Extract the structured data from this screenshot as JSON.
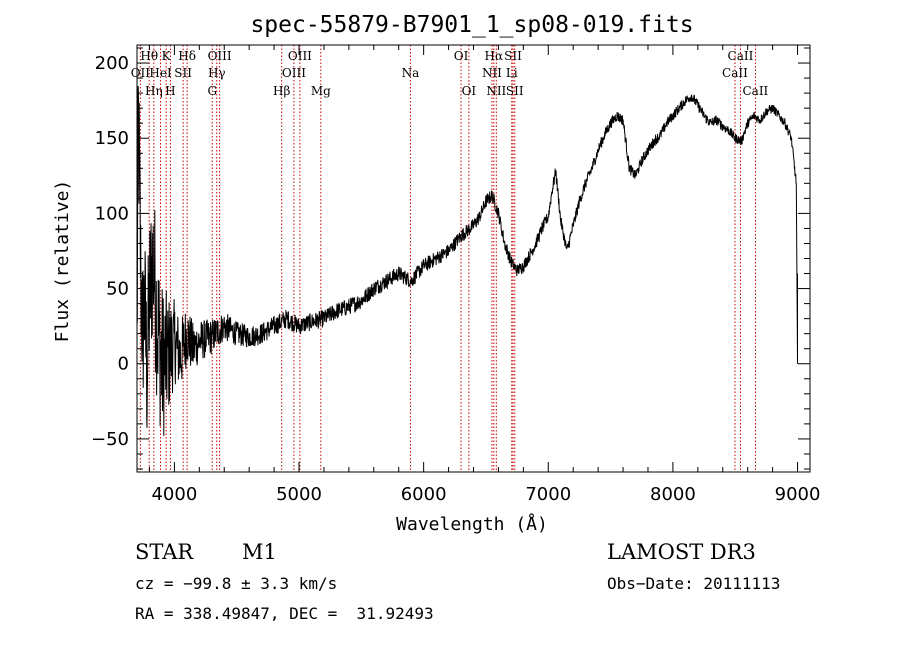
{
  "chart_data": {
    "type": "line",
    "title": "spec-55879-B7901_1_sp08-019.fits",
    "xlabel": "Wavelength (Å)",
    "ylabel": "Flux (relative)",
    "xlim": [
      3700,
      9100
    ],
    "ylim": [
      -72,
      212
    ],
    "xticks": [
      4000,
      5000,
      6000,
      7000,
      8000,
      9000
    ],
    "yticks": [
      -50,
      0,
      50,
      100,
      150,
      200
    ],
    "series": [
      {
        "name": "flux",
        "anchors": [
          [
            3700,
            10
          ],
          [
            3710,
            165
          ],
          [
            3720,
            120
          ],
          [
            3730,
            60
          ],
          [
            3745,
            20
          ],
          [
            3760,
            40
          ],
          [
            3780,
            -5
          ],
          [
            3800,
            45
          ],
          [
            3830,
            70
          ],
          [
            3860,
            30
          ],
          [
            3900,
            0
          ],
          [
            3950,
            5
          ],
          [
            4000,
            15
          ],
          [
            4050,
            5
          ],
          [
            4100,
            20
          ],
          [
            4150,
            10
          ],
          [
            4200,
            15
          ],
          [
            4300,
            18
          ],
          [
            4400,
            25
          ],
          [
            4500,
            20
          ],
          [
            4600,
            18
          ],
          [
            4700,
            20
          ],
          [
            4800,
            25
          ],
          [
            4900,
            30
          ],
          [
            5000,
            25
          ],
          [
            5100,
            28
          ],
          [
            5200,
            30
          ],
          [
            5300,
            35
          ],
          [
            5400,
            38
          ],
          [
            5500,
            42
          ],
          [
            5600,
            50
          ],
          [
            5700,
            55
          ],
          [
            5800,
            60
          ],
          [
            5900,
            55
          ],
          [
            6000,
            65
          ],
          [
            6100,
            70
          ],
          [
            6200,
            75
          ],
          [
            6300,
            85
          ],
          [
            6400,
            92
          ],
          [
            6450,
            98
          ],
          [
            6500,
            108
          ],
          [
            6550,
            112
          ],
          [
            6600,
            100
          ],
          [
            6650,
            80
          ],
          [
            6700,
            68
          ],
          [
            6750,
            62
          ],
          [
            6800,
            65
          ],
          [
            6850,
            72
          ],
          [
            6900,
            80
          ],
          [
            6950,
            90
          ],
          [
            7000,
            98
          ],
          [
            7030,
            115
          ],
          [
            7060,
            128
          ],
          [
            7100,
            95
          ],
          [
            7150,
            75
          ],
          [
            7200,
            92
          ],
          [
            7250,
            108
          ],
          [
            7300,
            120
          ],
          [
            7350,
            130
          ],
          [
            7400,
            142
          ],
          [
            7450,
            152
          ],
          [
            7500,
            160
          ],
          [
            7550,
            165
          ],
          [
            7600,
            162
          ],
          [
            7650,
            130
          ],
          [
            7700,
            125
          ],
          [
            7750,
            135
          ],
          [
            7800,
            142
          ],
          [
            7850,
            148
          ],
          [
            7900,
            152
          ],
          [
            7950,
            160
          ],
          [
            8000,
            165
          ],
          [
            8050,
            170
          ],
          [
            8100,
            175
          ],
          [
            8150,
            178
          ],
          [
            8200,
            172
          ],
          [
            8250,
            165
          ],
          [
            8300,
            160
          ],
          [
            8350,
            162
          ],
          [
            8400,
            158
          ],
          [
            8450,
            155
          ],
          [
            8500,
            150
          ],
          [
            8550,
            148
          ],
          [
            8600,
            160
          ],
          [
            8650,
            165
          ],
          [
            8700,
            162
          ],
          [
            8750,
            168
          ],
          [
            8800,
            170
          ],
          [
            8850,
            165
          ],
          [
            8900,
            160
          ],
          [
            8950,
            150
          ],
          [
            8990,
            120
          ],
          [
            9000,
            0
          ]
        ],
        "noise_profile": [
          [
            3700,
            55
          ],
          [
            3900,
            55
          ],
          [
            4000,
            28
          ],
          [
            4200,
            14
          ],
          [
            4500,
            8
          ],
          [
            5000,
            6
          ],
          [
            6000,
            5
          ],
          [
            7000,
            4
          ],
          [
            8000,
            3.5
          ],
          [
            9000,
            3
          ]
        ]
      }
    ],
    "spectral_lines": [
      {
        "name": "OII",
        "wavelength": 3727,
        "row": 2
      },
      {
        "name": "Hθ",
        "wavelength": 3798,
        "row": 1
      },
      {
        "name": "Hη",
        "wavelength": 3835,
        "row": 3
      },
      {
        "name": "HeI",
        "wavelength": 3889,
        "row": 2
      },
      {
        "name": "K",
        "wavelength": 3934,
        "row": 1
      },
      {
        "name": "H",
        "wavelength": 3968,
        "row": 3
      },
      {
        "name": "SII",
        "wavelength": 4070,
        "row": 2
      },
      {
        "name": "Hδ",
        "wavelength": 4102,
        "row": 1
      },
      {
        "name": "G",
        "wavelength": 4304,
        "row": 3
      },
      {
        "name": "Hγ",
        "wavelength": 4340,
        "row": 2
      },
      {
        "name": "OIII",
        "wavelength": 4363,
        "row": 1
      },
      {
        "name": "Hβ",
        "wavelength": 4861,
        "row": 3
      },
      {
        "name": "OIII",
        "wavelength": 4959,
        "row": 2
      },
      {
        "name": "OIII",
        "wavelength": 5007,
        "row": 1
      },
      {
        "name": "Mg",
        "wavelength": 5175,
        "row": 3
      },
      {
        "name": "Na",
        "wavelength": 5894,
        "row": 2
      },
      {
        "name": "OI",
        "wavelength": 6300,
        "row": 1
      },
      {
        "name": "OI",
        "wavelength": 6363,
        "row": 3
      },
      {
        "name": "NII",
        "wavelength": 6548,
        "row": 2
      },
      {
        "name": "Hα",
        "wavelength": 6563,
        "row": 1
      },
      {
        "name": "NII",
        "wavelength": 6583,
        "row": 3
      },
      {
        "name": "Li",
        "wavelength": 6707,
        "row": 2
      },
      {
        "name": "SII",
        "wavelength": 6717,
        "row": 1
      },
      {
        "name": "SII",
        "wavelength": 6731,
        "row": 3
      },
      {
        "name": "CaII",
        "wavelength": 8498,
        "row": 2
      },
      {
        "name": "CaII",
        "wavelength": 8542,
        "row": 1
      },
      {
        "name": "CaII",
        "wavelength": 8662,
        "row": 3
      }
    ]
  },
  "info": {
    "class": "STAR",
    "subclass": "M1",
    "survey": "LAMOST DR3",
    "cz": "cz = −99.8 ± 3.3 km/s",
    "obs_date": "Obs−Date: 20111113",
    "coords": "RA = 338.49847, DEC =  31.92493"
  },
  "colors": {
    "line": "#000000",
    "marker": "#cc0000"
  }
}
